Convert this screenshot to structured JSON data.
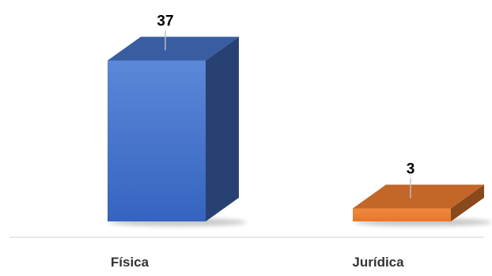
{
  "chart_data": {
    "type": "bar",
    "categories": [
      "Física",
      "Jurídica"
    ],
    "values": [
      37,
      3
    ],
    "data_labels": [
      "37",
      "3"
    ],
    "colors": [
      "#4472C4",
      "#ED7D31"
    ],
    "ylim": [
      0,
      40
    ],
    "grid": false,
    "legend": "none",
    "style": "3d-column"
  }
}
